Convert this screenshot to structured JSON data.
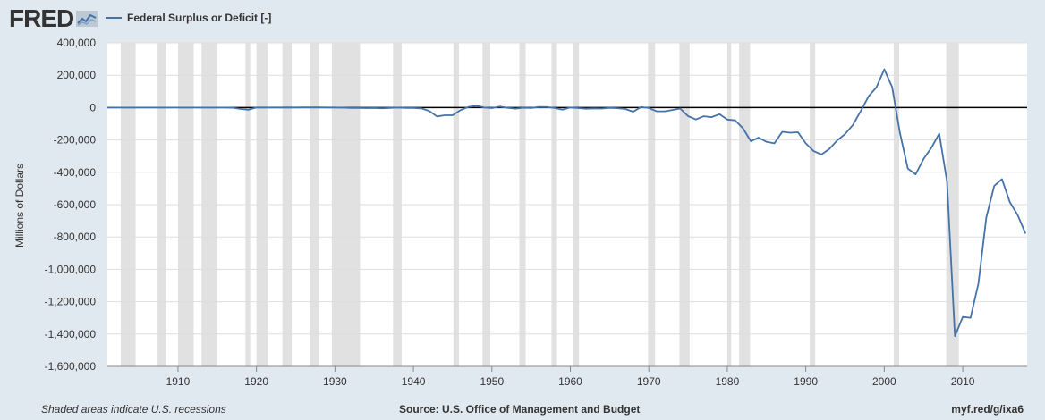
{
  "header": {
    "logo_text": "FRED",
    "logo_icon": "fred-chart-icon",
    "legend_label": "Federal Surplus or Deficit [-]"
  },
  "footer": {
    "note": "Shaded areas indicate U.S. recessions",
    "source": "Source: U.S. Office of Management and Budget",
    "link": "myf.red/g/ixa6"
  },
  "colors": {
    "background": "#e1e9f0",
    "plot_background": "#ffffff",
    "series": "#4572a7",
    "recession": "#e1e1e1",
    "zero_line": "#000000",
    "grid": "#dedede"
  },
  "chart_data": {
    "type": "line",
    "title": "",
    "xlabel": "",
    "ylabel": "Millions of Dollars",
    "xlim": [
      1901,
      2018.2
    ],
    "ylim": [
      -1600000,
      400000
    ],
    "x_ticks": [
      1910,
      1920,
      1930,
      1940,
      1950,
      1960,
      1970,
      1980,
      1990,
      2000,
      2010
    ],
    "x_tick_labels": [
      "1910",
      "1920",
      "1930",
      "1940",
      "1950",
      "1960",
      "1970",
      "1980",
      "1990",
      "2000",
      "2010"
    ],
    "y_ticks": [
      400000,
      200000,
      0,
      -200000,
      -400000,
      -600000,
      -800000,
      -1000000,
      -1200000,
      -1400000,
      -1600000
    ],
    "y_tick_labels": [
      "400,000",
      "200,000",
      "0",
      "-200,000",
      "-400,000",
      "-600,000",
      "-800,000",
      "-1,000,000",
      "-1,200,000",
      "-1,400,000",
      "-1,600,000"
    ],
    "grid": true,
    "legend": "top-left",
    "zero_line": true,
    "recessions": [
      [
        1902.7,
        1904.6
      ],
      [
        1907.4,
        1908.5
      ],
      [
        1910.0,
        1912.0
      ],
      [
        1913.0,
        1914.9
      ],
      [
        1918.6,
        1919.2
      ],
      [
        1920.0,
        1921.5
      ],
      [
        1923.3,
        1924.5
      ],
      [
        1926.8,
        1927.9
      ],
      [
        1929.6,
        1933.2
      ],
      [
        1937.4,
        1938.5
      ],
      [
        1945.1,
        1945.8
      ],
      [
        1948.8,
        1949.8
      ],
      [
        1953.5,
        1954.3
      ],
      [
        1957.6,
        1958.3
      ],
      [
        1960.3,
        1961.1
      ],
      [
        1969.9,
        1970.8
      ],
      [
        1973.9,
        1975.2
      ],
      [
        1980.0,
        1980.5
      ],
      [
        1981.5,
        1982.9
      ],
      [
        1990.5,
        1991.2
      ],
      [
        2001.2,
        2001.9
      ],
      [
        2007.9,
        2009.5
      ]
    ],
    "series": [
      {
        "x": [
          1901,
          1902,
          1903,
          1904,
          1905,
          1906,
          1907,
          1908,
          1909,
          1910,
          1911,
          1912,
          1913,
          1914,
          1915,
          1916,
          1917,
          1918,
          1919,
          1920,
          1921,
          1922,
          1923,
          1924,
          1925,
          1926,
          1927,
          1928,
          1929,
          1930,
          1931,
          1932,
          1933,
          1934,
          1935,
          1936,
          1937,
          1938,
          1939,
          1940,
          1941,
          1942,
          1943,
          1944,
          1945,
          1946,
          1947,
          1948,
          1949,
          1950,
          1951,
          1952,
          1953,
          1954,
          1955,
          1956,
          1957,
          1958,
          1959,
          1960,
          1961,
          1962,
          1963,
          1964,
          1965,
          1966,
          1967,
          1968,
          1969,
          1970,
          1971,
          1972,
          1973,
          1974,
          1975,
          1976,
          1977,
          1978,
          1979,
          1980,
          1981,
          1982,
          1983,
          1984,
          1985,
          1986,
          1987,
          1988,
          1989,
          1990,
          1991,
          1992,
          1993,
          1994,
          1995,
          1996,
          1997,
          1998,
          1999,
          2000,
          2001,
          2002,
          2003,
          2004,
          2005,
          2006,
          2007,
          2008,
          2009,
          2010,
          2011,
          2012,
          2013,
          2014,
          2015,
          2016,
          2017,
          2018
        ],
        "values": [
          63,
          77,
          45,
          -42,
          -23,
          25,
          87,
          -57,
          -89,
          -18,
          11,
          3,
          0,
          -35,
          -63,
          48,
          -853,
          -9000,
          -13363,
          291,
          509,
          736,
          713,
          963,
          717,
          865,
          1155,
          939,
          734,
          738,
          -462,
          -2735,
          -2602,
          -3586,
          -2803,
          -4304,
          -2193,
          -89,
          -2846,
          -2920,
          -4941,
          -20503,
          -54554,
          -47557,
          -47553,
          -15936,
          4018,
          11796,
          580,
          -3119,
          6102,
          -1519,
          -6493,
          -1154,
          -2993,
          3947,
          3412,
          -2769,
          -12849,
          301,
          -3335,
          -7146,
          -4756,
          -5915,
          -1411,
          -3698,
          -8643,
          -25161,
          3242,
          -2842,
          -23033,
          -23373,
          -14908,
          -6135,
          -53242,
          -73732,
          -53659,
          -59185,
          -40726,
          -73830,
          -78968,
          -127977,
          -207802,
          -185367,
          -212308,
          -221227,
          -149730,
          -155178,
          -152639,
          -221036,
          -269238,
          -290321,
          -255051,
          -203186,
          -163952,
          -107431,
          -21884,
          69270,
          125610,
          236241,
          128236,
          -157758,
          -377585,
          -412727,
          -318346,
          -248181,
          -160701,
          -458553,
          -1412688,
          -1294373,
          -1299599,
          -1087024,
          -679775,
          -484602,
          -441960,
          -584651,
          -665446,
          -779137
        ]
      }
    ]
  }
}
